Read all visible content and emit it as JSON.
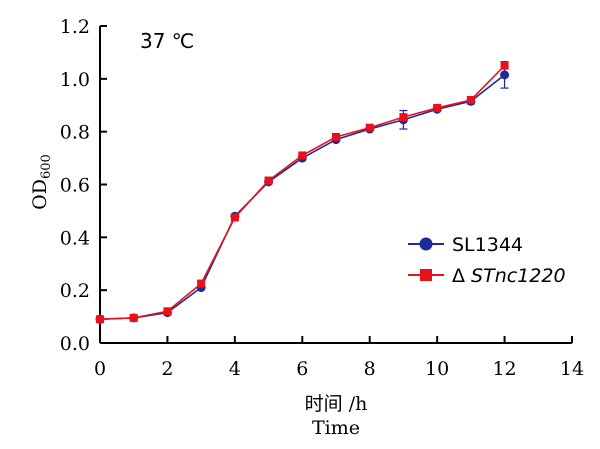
{
  "chart_data": {
    "type": "line",
    "title": "",
    "annotation": "37 ℃",
    "xlabel_cn": "时间 /h",
    "xlabel_en": "Time",
    "ylabel_main": "OD",
    "ylabel_sub": "600",
    "xlim": [
      0,
      14
    ],
    "ylim": [
      0,
      1.2
    ],
    "x_ticks": [
      "0",
      "2",
      "4",
      "6",
      "8",
      "10",
      "12",
      "14"
    ],
    "y_ticks": [
      "0.0",
      "0.2",
      "0.4",
      "0.6",
      "0.8",
      "1.0",
      "1.2"
    ],
    "grid": false,
    "legend_position": "right",
    "x": [
      0,
      1,
      2,
      3,
      4,
      5,
      6,
      7,
      8,
      9,
      10,
      11,
      12
    ],
    "series": [
      {
        "name": "SL1344",
        "name_prefix": "",
        "italic": false,
        "marker": "circle",
        "color": "#1f2a9a",
        "values": [
          0.09,
          0.095,
          0.115,
          0.21,
          0.48,
          0.61,
          0.7,
          0.77,
          0.81,
          0.845,
          0.885,
          0.915,
          1.015
        ],
        "errors": [
          0.005,
          0.005,
          0.005,
          0.005,
          0.005,
          0.005,
          0.005,
          0.005,
          0.005,
          0.035,
          0.005,
          0.01,
          0.05
        ]
      },
      {
        "name": "STnc1220",
        "name_prefix": "Δ",
        "italic": true,
        "marker": "square",
        "color": "#e8111b",
        "values": [
          0.09,
          0.095,
          0.12,
          0.225,
          0.475,
          0.615,
          0.71,
          0.78,
          0.815,
          0.855,
          0.89,
          0.92,
          1.05
        ],
        "errors": [
          0.005,
          0.005,
          0.005,
          0.005,
          0.005,
          0.005,
          0.005,
          0.005,
          0.005,
          0.01,
          0.005,
          0.005,
          0.01
        ]
      }
    ]
  }
}
